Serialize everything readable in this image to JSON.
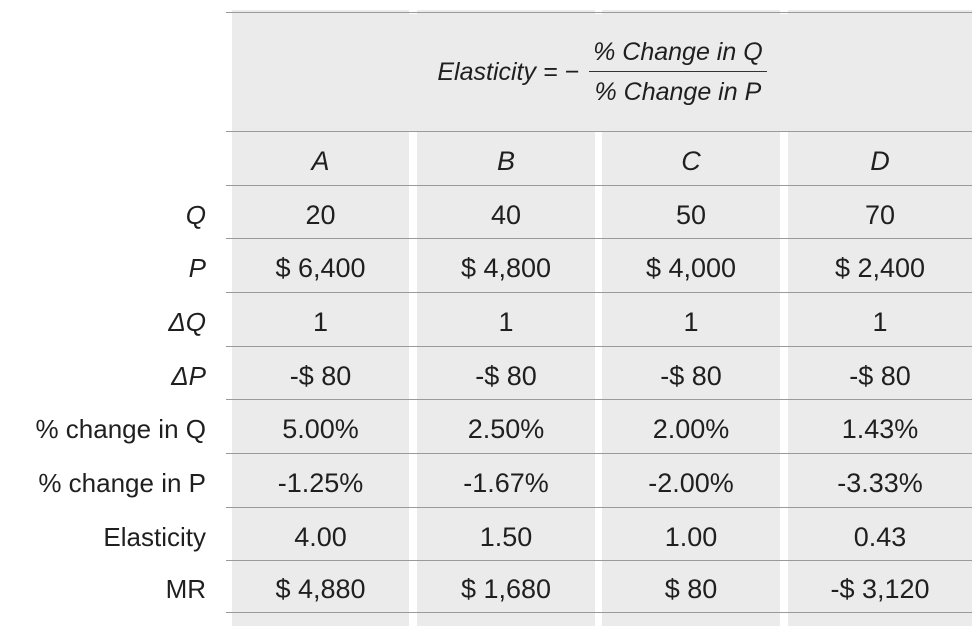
{
  "formula": {
    "lhs": "Elasticity = −",
    "numerator": "% Change in Q",
    "denominator": "% Change in P"
  },
  "columns": [
    "A",
    "B",
    "C",
    "D"
  ],
  "rows": [
    {
      "label": "Q",
      "values": [
        "20",
        "40",
        "50",
        "70"
      ]
    },
    {
      "label": "P",
      "values": [
        "$ 6,400",
        "$ 4,800",
        "$ 4,000",
        "$ 2,400"
      ]
    },
    {
      "label": "ΔQ",
      "values": [
        "1",
        "1",
        "1",
        "1"
      ]
    },
    {
      "label": "ΔP",
      "values": [
        "-$ 80",
        "-$ 80",
        "-$ 80",
        "-$ 80"
      ]
    },
    {
      "label": "% change in Q",
      "values": [
        "5.00%",
        "2.50%",
        "2.00%",
        "1.43%"
      ]
    },
    {
      "label": "% change in P",
      "values": [
        "-1.25%",
        "-1.67%",
        "-2.00%",
        "-3.33%"
      ]
    },
    {
      "label": "Elasticity",
      "values": [
        "4.00",
        "1.50",
        "1.00",
        "0.43"
      ]
    },
    {
      "label": "MR",
      "values": [
        "$ 4,880",
        "$ 1,680",
        "$ 80",
        "-$ 3,120"
      ]
    }
  ]
}
